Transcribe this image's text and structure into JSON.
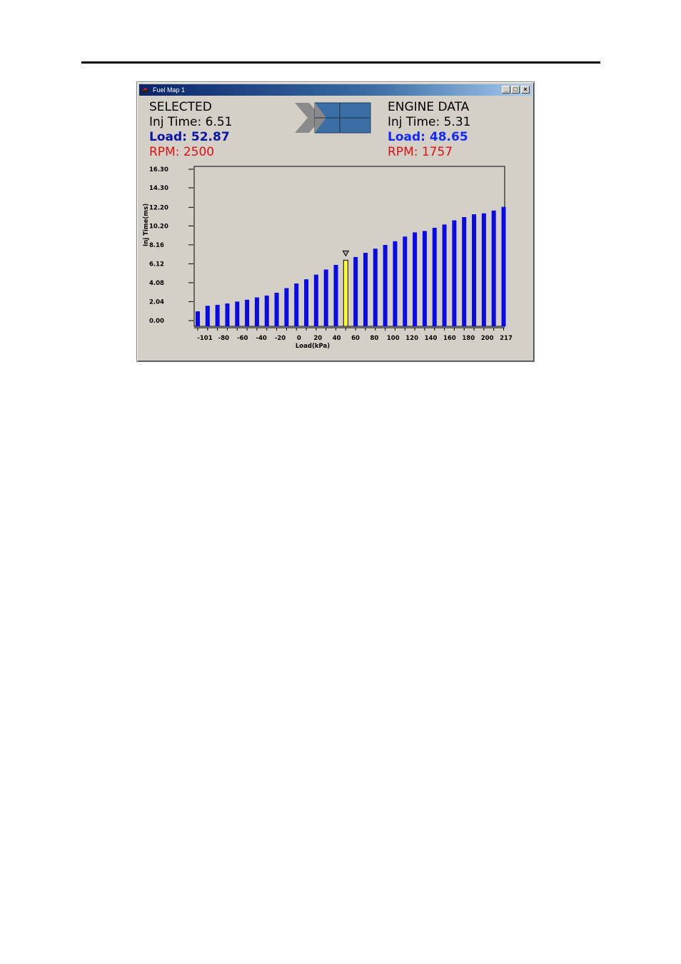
{
  "window": {
    "title": "Fuel Map 1",
    "controls": {
      "minimize": "_",
      "maximize": "□",
      "close": "×"
    }
  },
  "selected": {
    "heading": "SELECTED",
    "inj_time": "Inj Time: 6.51",
    "load": "Load: 52.87",
    "rpm": "RPM: 2500"
  },
  "engine_data": {
    "heading": "ENGINE DATA",
    "inj_time": "Inj Time: 5.31",
    "load": "Load: 48.65",
    "rpm": "RPM: 1757"
  },
  "icons": {
    "app": "fuel-map-app-icon",
    "logo": "arrow-grid-logo-icon"
  },
  "colors": {
    "bar": "#0a0ae6",
    "selected_bar": "#ffff33",
    "load_selected": "#0a14a8",
    "load_engine": "#1428ff",
    "rpm": "#e01010"
  },
  "chart_data": {
    "type": "bar",
    "xlabel": "Load(kPa)",
    "ylabel": "Inj Time(ms)",
    "y_ticks": [
      "16.30",
      "14.30",
      "12.20",
      "10.20",
      "8.16",
      "6.12",
      "4.08",
      "2.04",
      "0.00"
    ],
    "x_ticks": [
      "-101",
      "-80",
      "-60",
      "-40",
      "-20",
      "0",
      "20",
      "40",
      "60",
      "80",
      "100",
      "120",
      "140",
      "160",
      "180",
      "200",
      "217"
    ],
    "ylim": [
      0,
      16.3
    ],
    "values": [
      1.0,
      1.6,
      1.7,
      1.85,
      2.05,
      2.25,
      2.5,
      2.7,
      3.0,
      3.5,
      4.0,
      4.45,
      4.95,
      5.5,
      6.0,
      6.51,
      6.85,
      7.3,
      7.75,
      8.15,
      8.55,
      9.05,
      9.5,
      9.65,
      10.0,
      10.35,
      10.8,
      11.15,
      11.45,
      11.55,
      11.85,
      12.25
    ],
    "selected_index": 15,
    "grid": false
  }
}
